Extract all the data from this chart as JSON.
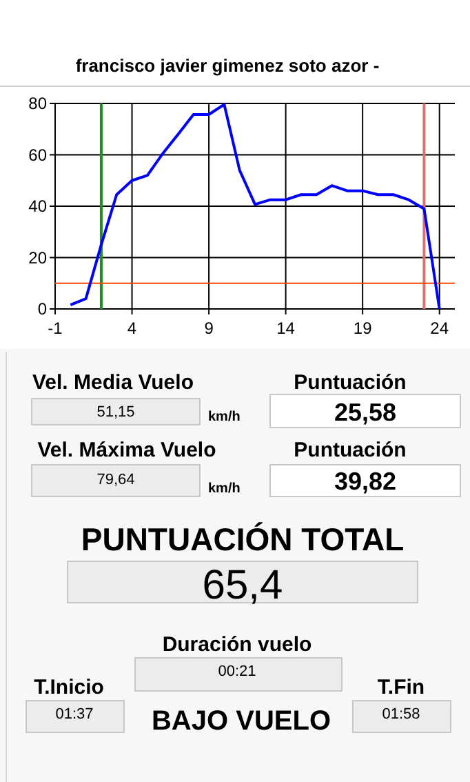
{
  "chart_data": [
    {
      "type": "line",
      "title": "francisco javier gimenez soto azor  -",
      "x": [
        0,
        1,
        2,
        3,
        4,
        5,
        6,
        7,
        8,
        9,
        10,
        11,
        12,
        13,
        14,
        15,
        16,
        17,
        18,
        19,
        20,
        21,
        22,
        23,
        24
      ],
      "series": [
        {
          "color": "#0000ff",
          "values": [
            1.6,
            4,
            25,
            44.5,
            50,
            52,
            60.5,
            68,
            75.7,
            75.7,
            79.6,
            54,
            40.7,
            42.5,
            42.5,
            44.5,
            44.5,
            48,
            46,
            46,
            44.5,
            44.5,
            42.5,
            39,
            0
          ]
        }
      ],
      "xlim": [
        -1,
        25
      ],
      "xticks": [
        -1,
        4,
        9,
        14,
        19,
        24
      ],
      "ylim": [
        0,
        80
      ],
      "yticks": [
        0,
        20,
        40,
        60,
        80
      ],
      "grid": true,
      "marker": "none",
      "line_style": "solid",
      "ref_lines": [
        {
          "axis": "x",
          "value": 2,
          "color": "#228b22"
        },
        {
          "axis": "x",
          "value": 23,
          "color": "#e07070"
        },
        {
          "axis": "y",
          "value": 10,
          "color": "#ff4500"
        }
      ]
    },
    {
      "type": "other",
      "annotations": [
        "Vel. Media Vuelo",
        "51,15",
        "km/h",
        "Puntuación",
        "25,58",
        "Vel. Máxima Vuelo",
        "79,64",
        "km/h",
        "Puntuación",
        "39,82",
        "PUNTUACIÓN TOTAL",
        "65,4",
        "Duración vuelo",
        "00:21",
        "T.Inicio",
        "01:37",
        "BAJO VUELO",
        "T.Fin",
        "01:58"
      ]
    }
  ]
}
